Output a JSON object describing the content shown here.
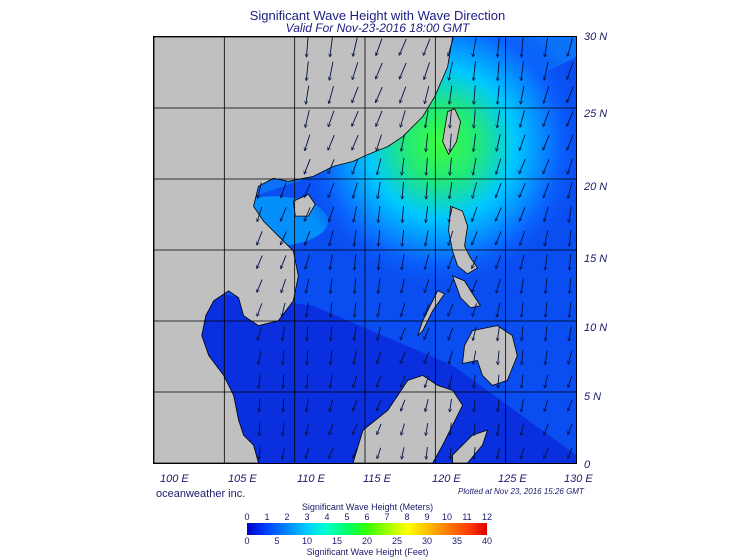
{
  "title": "Significant Wave Height with Wave Direction",
  "subtitle": "Valid For Nov-23-2016 18:00 GMT",
  "latitude_labels": [
    "30 N",
    "25 N",
    "20 N",
    "15 N",
    "10 N",
    "5 N",
    "0"
  ],
  "longitude_labels": [
    "100 E",
    "105 E",
    "110 E",
    "115 E",
    "120 E",
    "125 E",
    "130 E"
  ],
  "credit": "oceanweather inc.",
  "plotted": "Plotted at Nov 23, 2016 15:26 GMT",
  "colorbar": {
    "meters_title": "Significant Wave Height (Meters)",
    "meters_ticks": [
      "0",
      "1",
      "2",
      "3",
      "4",
      "5",
      "6",
      "7",
      "8",
      "9",
      "10",
      "11",
      "12"
    ],
    "feet_title": "Significant Wave Height (Feet)",
    "feet_ticks": [
      "0",
      "5",
      "10",
      "15",
      "20",
      "25",
      "30",
      "35",
      "40"
    ]
  },
  "colors": {
    "land": "#c0c0c0",
    "low": "#0000c8",
    "mid": "#0a5cff",
    "high": "#33ff33"
  },
  "map_extent": {
    "lon_range": [
      100,
      130
    ],
    "lat_range": [
      0,
      30
    ]
  }
}
